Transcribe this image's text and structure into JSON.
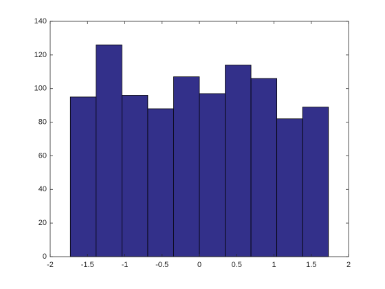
{
  "chart_data": {
    "type": "histogram",
    "bins": [
      -1.73,
      -1.384,
      -1.038,
      -0.692,
      -0.346,
      0,
      0.346,
      0.692,
      1.038,
      1.384,
      1.73
    ],
    "values": [
      95,
      126,
      96,
      88,
      107,
      97,
      114,
      106,
      82,
      89
    ],
    "color": "#33308a",
    "xlim": [
      -2,
      2
    ],
    "xticks": [
      -2,
      -1.5,
      -1,
      -0.5,
      0,
      0.5,
      1,
      1.5,
      2
    ],
    "ylim": [
      0,
      140
    ],
    "yticks": [
      0,
      20,
      40,
      60,
      80,
      100,
      120,
      140
    ]
  }
}
